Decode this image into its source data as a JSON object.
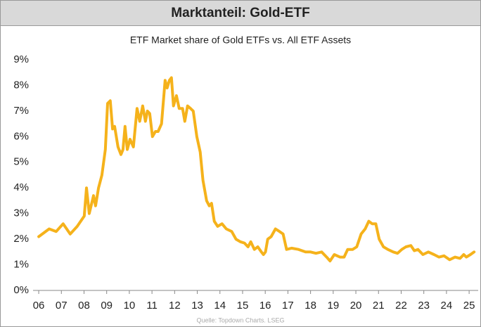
{
  "chart_data": {
    "type": "line",
    "title": "Marktanteil: Gold-ETF",
    "subtitle": "ETF Market share of Gold ETFs vs. All ETF Assets",
    "source": "Quelle: Topdown Charts. LSEG",
    "xlim": [
      2005.75,
      2025.4
    ],
    "xticks": [
      {
        "value": 2006,
        "label": "06"
      },
      {
        "value": 2007,
        "label": "07"
      },
      {
        "value": 2008,
        "label": "08"
      },
      {
        "value": 2009,
        "label": "09"
      },
      {
        "value": 2010,
        "label": "10"
      },
      {
        "value": 2011,
        "label": "11"
      },
      {
        "value": 2012,
        "label": "12"
      },
      {
        "value": 2013,
        "label": "13"
      },
      {
        "value": 2014,
        "label": "14"
      },
      {
        "value": 2015,
        "label": "15"
      },
      {
        "value": 2016,
        "label": "16"
      },
      {
        "value": 2017,
        "label": "17"
      },
      {
        "value": 2018,
        "label": "18"
      },
      {
        "value": 2019,
        "label": "19"
      },
      {
        "value": 2020,
        "label": "20"
      },
      {
        "value": 2021,
        "label": "21"
      },
      {
        "value": 2022,
        "label": "22"
      },
      {
        "value": 2023,
        "label": "23"
      },
      {
        "value": 2024,
        "label": "24"
      },
      {
        "value": 2025,
        "label": "25"
      }
    ],
    "ylim": [
      0,
      9
    ],
    "yticks": [
      {
        "value": 0,
        "label": "0%"
      },
      {
        "value": 1,
        "label": "1%"
      },
      {
        "value": 2,
        "label": "2%"
      },
      {
        "value": 3,
        "label": "3%"
      },
      {
        "value": 4,
        "label": "4%"
      },
      {
        "value": 5,
        "label": "5%"
      },
      {
        "value": 6,
        "label": "6%"
      },
      {
        "value": 7,
        "label": "7%"
      },
      {
        "value": 8,
        "label": "8%"
      },
      {
        "value": 9,
        "label": "9%"
      }
    ],
    "x": [
      2006.0,
      2006.46,
      2006.77,
      2007.08,
      2007.39,
      2007.7,
      2008.01,
      2008.11,
      2008.23,
      2008.42,
      2008.51,
      2008.64,
      2008.79,
      2008.94,
      2009.04,
      2009.16,
      2009.26,
      2009.35,
      2009.5,
      2009.63,
      2009.72,
      2009.81,
      2009.91,
      2010.03,
      2010.18,
      2010.34,
      2010.46,
      2010.59,
      2010.71,
      2010.8,
      2010.9,
      2011.02,
      2011.15,
      2011.27,
      2011.42,
      2011.58,
      2011.67,
      2011.77,
      2011.86,
      2011.95,
      2012.08,
      2012.2,
      2012.35,
      2012.45,
      2012.57,
      2012.7,
      2012.82,
      2012.98,
      2013.13,
      2013.25,
      2013.41,
      2013.53,
      2013.63,
      2013.75,
      2013.9,
      2014.09,
      2014.28,
      2014.52,
      2014.71,
      2014.9,
      2015.08,
      2015.24,
      2015.36,
      2015.52,
      2015.67,
      2015.83,
      2015.92,
      2016.01,
      2016.11,
      2016.26,
      2016.45,
      2016.63,
      2016.79,
      2016.94,
      2017.16,
      2017.47,
      2017.78,
      2018.0,
      2018.24,
      2018.49,
      2018.71,
      2018.86,
      2019.05,
      2019.3,
      2019.48,
      2019.64,
      2019.86,
      2020.04,
      2020.23,
      2020.41,
      2020.57,
      2020.72,
      2020.88,
      2021.03,
      2021.22,
      2021.41,
      2021.65,
      2021.84,
      2022.03,
      2022.21,
      2022.43,
      2022.58,
      2022.74,
      2022.96,
      2023.2,
      2023.45,
      2023.67,
      2023.89,
      2024.14,
      2024.38,
      2024.6,
      2024.76,
      2024.88,
      2025.06,
      2025.22
    ],
    "series": [
      {
        "name": "Gold-ETF",
        "color": "#f5b21b",
        "values": [
          2.1,
          2.4,
          2.3,
          2.6,
          2.2,
          2.5,
          2.9,
          4.0,
          3.0,
          3.7,
          3.3,
          4.0,
          4.5,
          5.5,
          7.3,
          7.4,
          6.3,
          6.4,
          5.6,
          5.3,
          5.5,
          6.4,
          5.5,
          5.9,
          5.6,
          7.1,
          6.6,
          7.2,
          6.6,
          7.0,
          6.9,
          6.0,
          6.2,
          6.2,
          6.5,
          8.2,
          7.9,
          8.2,
          8.3,
          7.2,
          7.6,
          7.1,
          7.1,
          6.6,
          7.2,
          7.1,
          7.0,
          6.0,
          5.4,
          4.3,
          3.5,
          3.3,
          3.4,
          2.7,
          2.5,
          2.6,
          2.4,
          2.3,
          2.0,
          1.9,
          1.85,
          1.7,
          1.9,
          1.6,
          1.7,
          1.5,
          1.4,
          1.5,
          2.0,
          2.1,
          2.4,
          2.3,
          2.2,
          1.6,
          1.65,
          1.6,
          1.5,
          1.5,
          1.45,
          1.5,
          1.3,
          1.15,
          1.4,
          1.3,
          1.3,
          1.6,
          1.6,
          1.7,
          2.2,
          2.4,
          2.7,
          2.6,
          2.6,
          2.0,
          1.7,
          1.6,
          1.5,
          1.45,
          1.6,
          1.7,
          1.75,
          1.55,
          1.6,
          1.4,
          1.5,
          1.4,
          1.3,
          1.35,
          1.2,
          1.3,
          1.25,
          1.4,
          1.3,
          1.4,
          1.5
        ]
      }
    ]
  }
}
